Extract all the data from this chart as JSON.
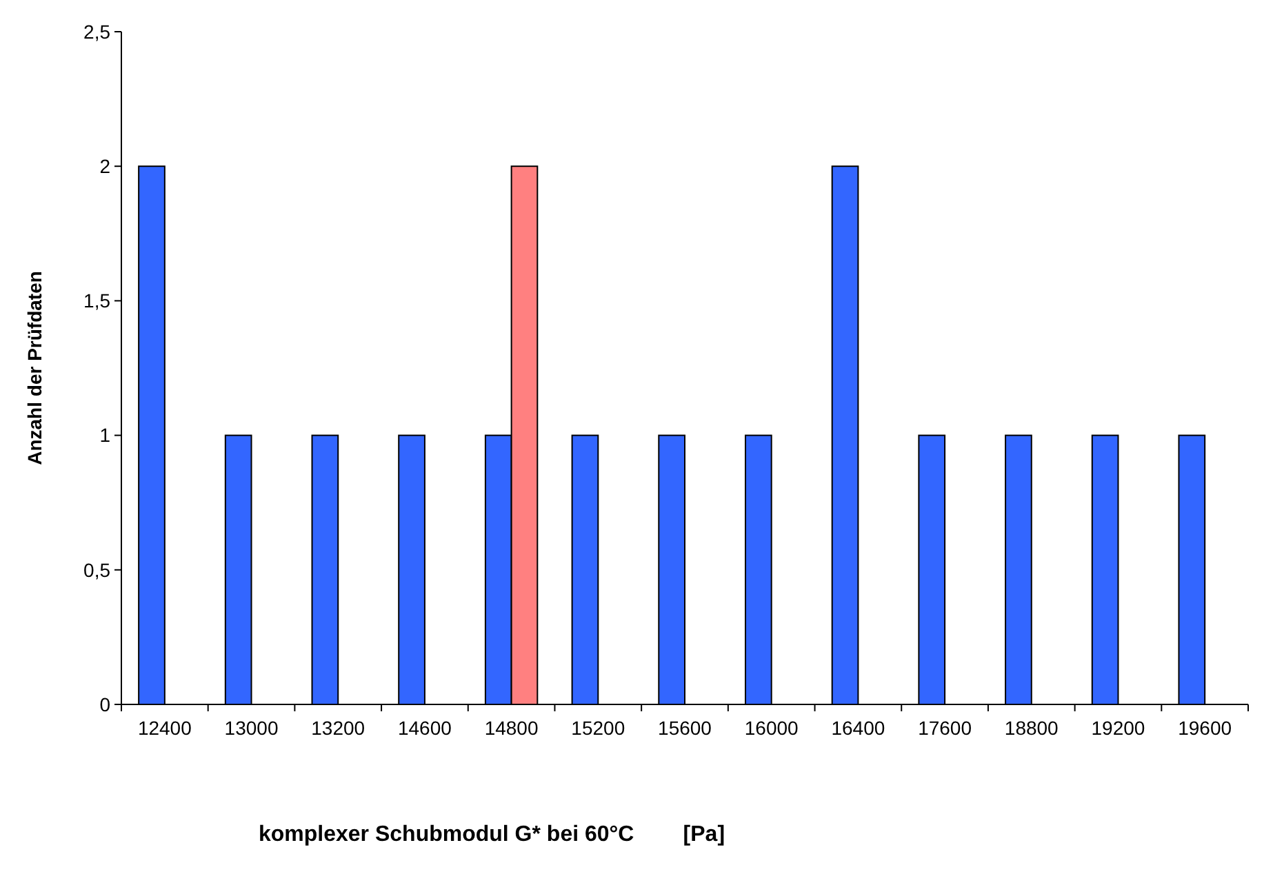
{
  "chart_data": {
    "type": "bar",
    "xlabel": "komplexer Schubmodul G* bei 60°C        [Pa]",
    "ylabel": "Anzahl der Prüfdaten",
    "categories": [
      "12400",
      "13000",
      "13200",
      "14600",
      "14800",
      "15200",
      "15600",
      "16000",
      "16400",
      "17600",
      "18800",
      "19200",
      "19600"
    ],
    "series": [
      {
        "color": "#3366ff",
        "values": [
          2,
          1,
          1,
          1,
          1,
          1,
          1,
          1,
          2,
          1,
          1,
          1,
          1
        ]
      },
      {
        "color": "#ff8080",
        "values": [
          null,
          null,
          null,
          null,
          2,
          null,
          null,
          null,
          null,
          null,
          null,
          null,
          null
        ]
      }
    ],
    "ylim": [
      0,
      2.5
    ],
    "yticks": [
      {
        "value": 0,
        "label": "0"
      },
      {
        "value": 0.5,
        "label": "0,5"
      },
      {
        "value": 1,
        "label": "1"
      },
      {
        "value": 1.5,
        "label": "1,5"
      },
      {
        "value": 2,
        "label": "2"
      },
      {
        "value": 2.5,
        "label": "2,5"
      }
    ],
    "grid": false
  }
}
